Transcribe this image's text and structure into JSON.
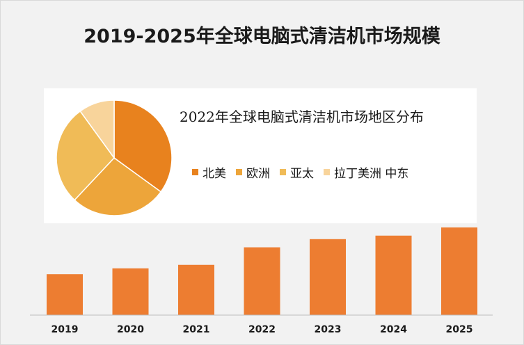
{
  "title": "2019-2025年全球电脑式清洁机市场规模",
  "chart_data": [
    {
      "type": "bar",
      "title": "2019-2025年全球电脑式清洁机市场规模",
      "categories": [
        "2019",
        "2020",
        "2021",
        "2022",
        "2023",
        "2024",
        "2025"
      ],
      "values": [
        35,
        40,
        43,
        58,
        65,
        68,
        75
      ],
      "ylim": [
        0,
        75
      ],
      "grid": false,
      "color": "#ed7d31"
    },
    {
      "type": "pie",
      "title": "2022年全球电脑式清洁机市场地区分布",
      "labels": [
        "北美",
        "欧洲",
        "亚太",
        "拉丁美洲 中东"
      ],
      "values": [
        35,
        27,
        28,
        10
      ],
      "colors": [
        "#e8821e",
        "#eda53a",
        "#f0bb57",
        "#f8d49b"
      ],
      "legend_position": "right"
    }
  ]
}
